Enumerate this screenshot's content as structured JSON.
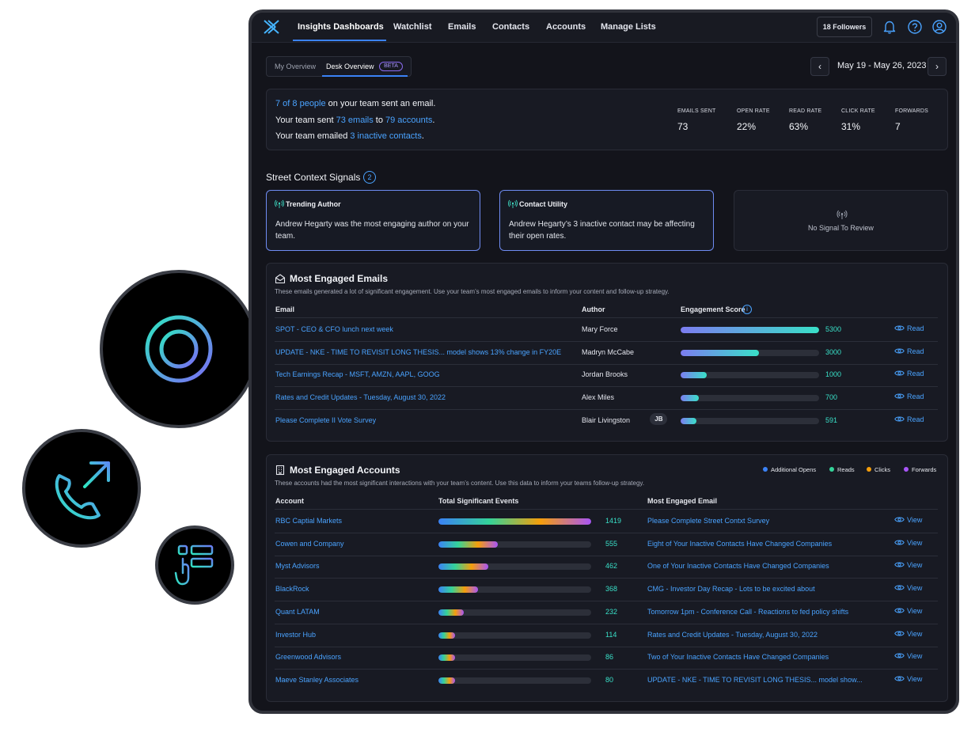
{
  "nav": {
    "items": [
      "Insights Dashboards",
      "Watchlist",
      "Emails",
      "Contacts",
      "Accounts",
      "Manage Lists"
    ],
    "followers": "18 Followers",
    "icons": [
      "bell-icon",
      "help-icon",
      "user-icon"
    ]
  },
  "subtabs": {
    "my_overview": "My Overview",
    "desk_overview": "Desk Overview",
    "beta": "BETA"
  },
  "date": {
    "range": "May 19 - May 26, 2023",
    "prev": "‹",
    "next": "›"
  },
  "summary": {
    "line1": {
      "link": "7 of 8 people",
      "text": " on your team sent an email."
    },
    "line2": {
      "pre": "Your team sent ",
      "emails": "73 emails",
      "mid": " to ",
      "accounts": "79 accounts",
      "post": "."
    },
    "line3": {
      "pre": "Your team emailed ",
      "link": "3 inactive contacts",
      "post": "."
    },
    "stats": [
      {
        "label": "EMAILS SENT",
        "value": "73"
      },
      {
        "label": "OPEN RATE",
        "value": "22%"
      },
      {
        "label": "READ RATE",
        "value": "63%"
      },
      {
        "label": "CLICK RATE",
        "value": "31%"
      },
      {
        "label": "FORWARDS",
        "value": "7"
      }
    ]
  },
  "signals": {
    "title": "Street Context Signals",
    "count": "2",
    "cards": [
      {
        "title": "Trending Author",
        "body": "Andrew Hegarty was the most engaging author on your team."
      },
      {
        "title": "Contact Utility",
        "body": "Andrew Hegarty’s 3 inactive contact may be affecting their open rates."
      }
    ],
    "empty": "No Signal To Review"
  },
  "emails": {
    "title": "Most Engaged Emails",
    "desc": "These emails generated a lot of significant engagement. Use your team’s most engaged emails to inform your content and follow-up strategy.",
    "headers": {
      "email": "Email",
      "author": "Author",
      "score": "Engagement Score",
      "info": "i"
    },
    "action": "Read",
    "max_score": 5300,
    "rows": [
      {
        "email": "SPOT - CEO & CFO lunch next week",
        "author": "Mary Force",
        "score": 5300
      },
      {
        "email": "UPDATE - NKE - TIME TO REVISIT LONG THESIS... model shows 13% change in FY20E",
        "author": "Madryn McCabe",
        "score": 3000
      },
      {
        "email": "Tech Earnings Recap - MSFT, AMZN, AAPL, GOOG",
        "author": "Jordan Brooks",
        "score": 1000
      },
      {
        "email": "Rates and Credit Updates - Tuesday, August 30, 2022",
        "author": "Alex Miles",
        "score": 700
      },
      {
        "email": "Please Complete II Vote Survey",
        "author": "Blair Livingston",
        "initials": "JB",
        "score": 591
      }
    ]
  },
  "accounts": {
    "title": "Most Engaged Accounts",
    "desc": "These accounts had the most significant interactions with your team’s content. Use this data to inform your teams follow-up strategy.",
    "legend": [
      {
        "label": "Additional Opens",
        "color": "#3b82f6"
      },
      {
        "label": "Reads",
        "color": "#34d399"
      },
      {
        "label": "Clicks",
        "color": "#f59e0b"
      },
      {
        "label": "Forwards",
        "color": "#a855f7"
      }
    ],
    "headers": {
      "account": "Account",
      "events": "Total Significant Events",
      "email": "Most Engaged Email"
    },
    "action": "View",
    "max_events": 1419,
    "rows": [
      {
        "account": "RBC Captial Markets",
        "events": 1419,
        "email": "Please Complete Street Contxt Survey"
      },
      {
        "account": "Cowen and Company",
        "events": 555,
        "email": "Eight of Your Inactive Contacts Have Changed Companies"
      },
      {
        "account": "Myst Advisors",
        "events": 462,
        "email": "One of Your Inactive Contacts Have Changed Companies"
      },
      {
        "account": "BlackRock",
        "events": 368,
        "email": "CMG - Investor Day Recap - Lots to be excited about"
      },
      {
        "account": "Quant LATAM",
        "events": 232,
        "email": "Tomorrow 1pm - Conference Call - Reactions to fed policy shifts"
      },
      {
        "account": "Investor Hub",
        "events": 114,
        "email": "Rates and Credit Updates - Tuesday, August 30, 2022"
      },
      {
        "account": "Greenwood Advisors",
        "events": 86,
        "email": "Two of Your Inactive Contacts Have Changed Companies"
      },
      {
        "account": "Maeve Stanley Associates",
        "events": 80,
        "email": "UPDATE - NKE - TIME TO REVISIT LONG THESIS... model show..."
      }
    ]
  },
  "decor": {
    "icons": [
      "target-icon",
      "phone-outgoing-icon",
      "touch-list-icon"
    ]
  }
}
